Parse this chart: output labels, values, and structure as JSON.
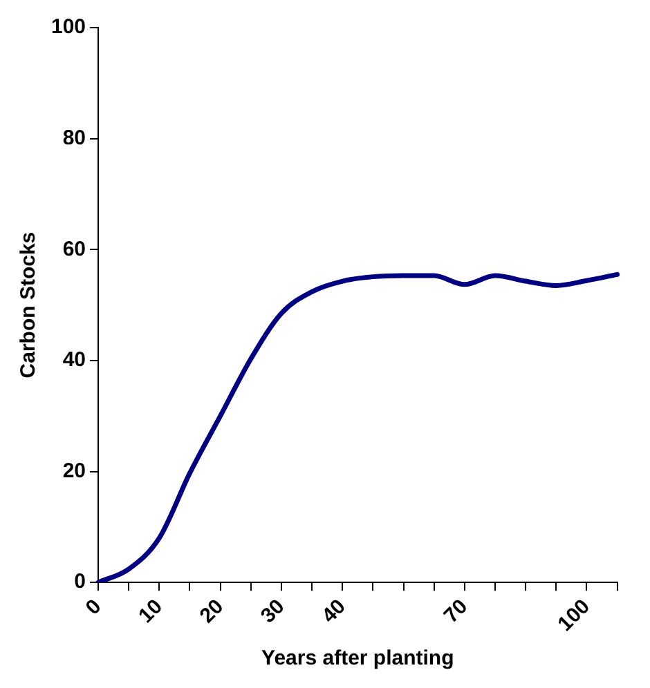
{
  "chart_data": {
    "type": "line",
    "xlabel": "Years after planting",
    "ylabel": "Carbon Stocks",
    "categories": [
      "0",
      null,
      "10",
      null,
      "20",
      null,
      "30",
      null,
      "40",
      null,
      null,
      null,
      "70",
      null,
      null,
      null,
      "100",
      null
    ],
    "series": [
      {
        "color": "#000080",
        "values": [
          0,
          2.4,
          8,
          19.7,
          30,
          40.3,
          48.5,
          52.4,
          54.3,
          55.1,
          55.3,
          55.3,
          53.7,
          55.3,
          54.3,
          53.5,
          54.4,
          55.5
        ]
      }
    ],
    "ylim": [
      0,
      100
    ],
    "yticks": [
      0,
      20,
      40,
      60,
      80,
      100
    ],
    "grid": false,
    "legend": false,
    "marker": "none",
    "line_style": "solid"
  }
}
